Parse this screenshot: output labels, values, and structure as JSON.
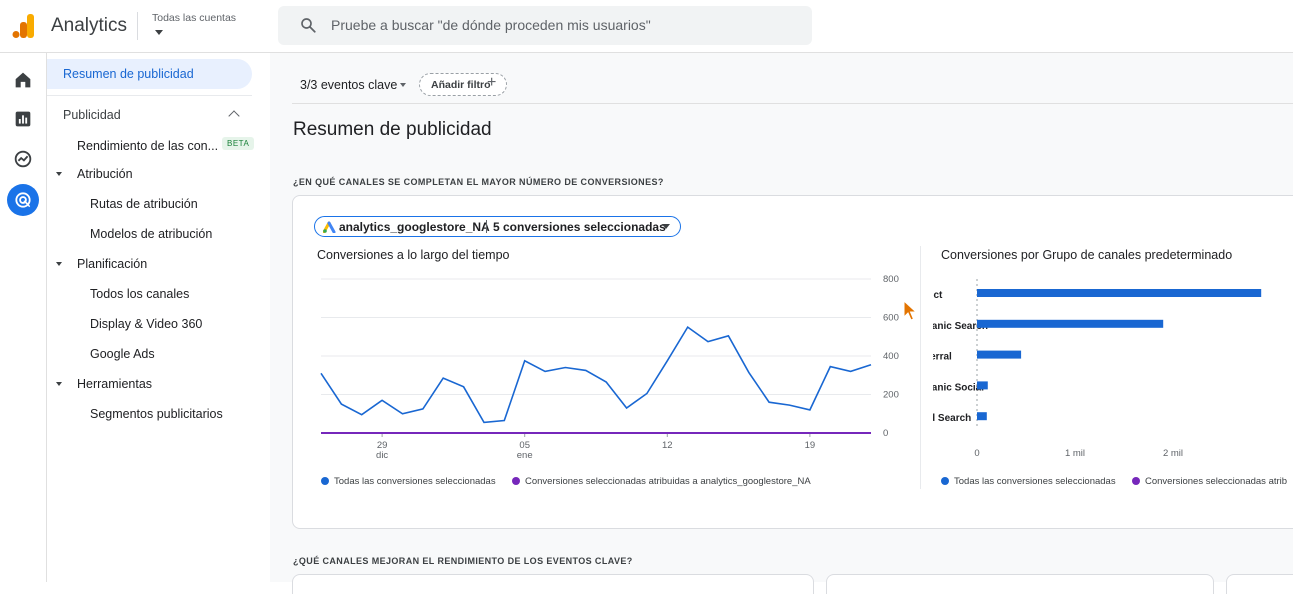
{
  "header": {
    "app_title": "Analytics",
    "account_label": "Todas las cuentas",
    "search_placeholder": "Pruebe a buscar \"de dónde proceden mis usuarios\""
  },
  "rail": {
    "icons": [
      "home-icon",
      "reports-icon",
      "explore-icon",
      "advertising-icon"
    ],
    "active": "advertising-icon"
  },
  "sidebar": {
    "active_item": "Resumen de publicidad",
    "section": "Publicidad",
    "performance_item": "Rendimiento de las con...",
    "beta_badge": "BETA",
    "attribution": "Atribución",
    "attribution_paths": "Rutas de atribución",
    "attribution_models": "Modelos de atribución",
    "planning": "Planificación",
    "all_channels": "Todos los canales",
    "display_video": "Display & Video 360",
    "google_ads": "Google Ads",
    "tools": "Herramientas",
    "ad_segments": "Segmentos publicitarios"
  },
  "toolbar": {
    "events_label": "3/3 eventos clave",
    "add_filter": "Añadir filtro"
  },
  "main": {
    "page_title": "Resumen de publicidad",
    "question_1": "¿EN QUÉ CANALES SE COMPLETAN EL MAYOR NÚMERO DE CONVERSIONES?",
    "question_2": "¿QUÉ CANALES MEJORAN EL RENDIMIENTO DE LOS EVENTOS CLAVE?"
  },
  "card": {
    "chip_property": "analytics_googlestore_NA",
    "chip_conversions": "5 conversiones seleccionadas",
    "line_chart_title": "Conversiones a lo largo del tiempo",
    "bar_chart_title": "Conversiones por Grupo de canales predeterminado",
    "legend_all": "Todas las conversiones seleccionadas",
    "legend_attributed": "Conversiones seleccionadas atribuidas a analytics_googlestore_NA",
    "legend_attributed_truncated": "Conversiones seleccionadas atrib"
  },
  "colors": {
    "series_all": "#1967d2",
    "series_attributed": "#7627bb",
    "accent": "#1a73e8"
  },
  "chart_data": [
    {
      "type": "line",
      "title": "Conversiones a lo largo del tiempo",
      "x_tick_labels": [
        {
          "day": "29",
          "month": "dic",
          "index": 3
        },
        {
          "day": "05",
          "month": "ene",
          "index": 10
        },
        {
          "day": "12",
          "month": "",
          "index": 17
        },
        {
          "day": "19",
          "month": "",
          "index": 24
        }
      ],
      "ylim": [
        0,
        800
      ],
      "y_ticks": [
        "800",
        "600",
        "400",
        "200",
        "0"
      ],
      "y_tick_values": [
        800,
        600,
        400,
        200,
        0
      ],
      "series": [
        {
          "name": "Todas las conversiones seleccionadas",
          "values": [
            310,
            150,
            95,
            170,
            100,
            125,
            285,
            240,
            55,
            65,
            375,
            320,
            340,
            325,
            265,
            130,
            205,
            375,
            550,
            475,
            505,
            315,
            160,
            145,
            120,
            345,
            320,
            355
          ]
        },
        {
          "name": "Conversiones seleccionadas atribuidas a analytics_googlestore_NA",
          "values": [
            0,
            0,
            0,
            0,
            0,
            0,
            0,
            0,
            0,
            0,
            0,
            0,
            0,
            0,
            0,
            0,
            0,
            0,
            0,
            0,
            0,
            0,
            0,
            0,
            0,
            0,
            0,
            0
          ]
        }
      ]
    },
    {
      "type": "bar",
      "orientation": "horizontal",
      "title": "Conversiones por Grupo de canales predeterminado",
      "categories": [
        "Direct",
        "Organic Search",
        "Referral",
        "Organic Social",
        "Paid Search"
      ],
      "series": [
        {
          "name": "Todas las conversiones seleccionadas",
          "values": [
            2900,
            1900,
            450,
            110,
            100
          ]
        },
        {
          "name": "Conversiones seleccionadas atribuidas a analytics_googlestore_NA",
          "values": [
            0,
            0,
            0,
            0,
            0
          ]
        }
      ],
      "x_ticks": [
        "0",
        "1 mil",
        "2 mil"
      ],
      "x_tick_values": [
        0,
        1000,
        2000
      ]
    }
  ]
}
